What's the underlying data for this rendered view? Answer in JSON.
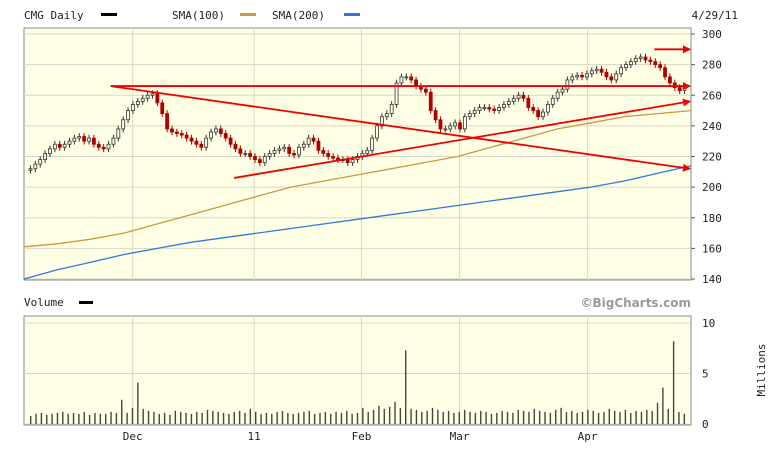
{
  "header": {
    "symbol_label": "CMG Daily",
    "sma100_label": "SMA(100)",
    "sma200_label": "SMA(200)",
    "date": "4/29/11"
  },
  "volume_panel": {
    "label": "Volume",
    "watermark": "©BigCharts.com",
    "unit_label": "Millions"
  },
  "colors": {
    "background": "#ffffe6",
    "grid": "#d8d8c8",
    "price_candles": "#b00000",
    "sma100": "#cc9944",
    "sma200": "#3377dd",
    "trend_arrows": "#ee0000",
    "volume_bars": "#444444"
  },
  "chart_data": [
    {
      "type": "candlestick",
      "title": "CMG Daily",
      "y_ticks": [
        "300",
        "280",
        "260",
        "240",
        "220",
        "200",
        "180",
        "160",
        "140"
      ],
      "ylim": [
        140,
        300
      ],
      "x_labels": [
        "Dec",
        "11",
        "Feb",
        "Mar",
        "Apr"
      ],
      "grid": true,
      "approx_close": [
        212,
        215,
        218,
        222,
        225,
        228,
        226,
        228,
        230,
        232,
        233,
        230,
        232,
        228,
        226,
        225,
        228,
        232,
        238,
        244,
        250,
        254,
        256,
        258,
        260,
        261,
        255,
        248,
        238,
        236,
        235,
        234,
        232,
        230,
        228,
        226,
        232,
        236,
        238,
        235,
        232,
        228,
        225,
        222,
        222,
        220,
        218,
        216,
        220,
        222,
        224,
        225,
        226,
        222,
        221,
        226,
        228,
        232,
        230,
        224,
        222,
        220,
        219,
        218,
        218,
        216,
        218,
        220,
        222,
        224,
        232,
        240,
        246,
        248,
        254,
        268,
        272,
        272,
        270,
        266,
        264,
        262,
        250,
        244,
        238,
        238,
        240,
        242,
        238,
        246,
        248,
        250,
        252,
        252,
        251,
        250,
        252,
        254,
        256,
        258,
        260,
        258,
        252,
        250,
        246,
        249,
        254,
        258,
        262,
        264,
        270,
        272,
        273,
        272,
        274,
        276,
        277,
        275,
        272,
        270,
        274,
        278,
        280,
        282,
        284,
        285,
        283,
        282,
        280,
        278,
        272,
        268,
        265,
        263,
        265
      ],
      "series": [
        {
          "name": "SMA(100)",
          "values": [
            161,
            163,
            166,
            170,
            176,
            182,
            188,
            194,
            200,
            204,
            208,
            212,
            216,
            220,
            226,
            232,
            238,
            242,
            246,
            248,
            250
          ]
        },
        {
          "name": "SMA(200)",
          "values": [
            140,
            146,
            151,
            156,
            160,
            164,
            167,
            170,
            173,
            176,
            179,
            182,
            185,
            188,
            191,
            194,
            197,
            200,
            204,
            209,
            214
          ]
        }
      ],
      "trend_lines": [
        {
          "from": [
            0.13,
            266
          ],
          "to": [
            1.0,
            266
          ]
        },
        {
          "from": [
            0.13,
            266
          ],
          "to": [
            1.0,
            212
          ]
        },
        {
          "from": [
            0.315,
            206
          ],
          "to": [
            1.0,
            256
          ]
        },
        {
          "from": [
            0.945,
            290
          ],
          "to": [
            1.0,
            290
          ]
        }
      ]
    },
    {
      "type": "bar",
      "title": "Volume",
      "ylabel": "Millions",
      "y_ticks": [
        "10",
        "5",
        "0"
      ],
      "ylim": [
        0,
        10
      ],
      "values": [
        0.8,
        1.0,
        1.1,
        0.9,
        1.0,
        1.1,
        1.2,
        1.0,
        1.1,
        1.0,
        1.2,
        0.9,
        1.1,
        1.0,
        1.0,
        1.2,
        1.1,
        2.4,
        1.1,
        1.6,
        4.1,
        1.5,
        1.3,
        1.2,
        1.0,
        1.1,
        0.9,
        1.3,
        1.2,
        1.1,
        1.0,
        1.2,
        1.1,
        1.4,
        1.3,
        1.2,
        1.1,
        1.0,
        1.2,
        1.3,
        1.1,
        1.5,
        1.2,
        1.0,
        1.1,
        1.0,
        1.2,
        1.3,
        1.1,
        1.0,
        1.1,
        1.2,
        1.3,
        1.0,
        1.1,
        1.2,
        1.0,
        1.2,
        1.1,
        1.3,
        1.0,
        1.1,
        1.6,
        1.2,
        1.4,
        1.8,
        1.5,
        1.7,
        2.2,
        1.6,
        7.3,
        1.5,
        1.4,
        1.2,
        1.3,
        1.6,
        1.4,
        1.2,
        1.3,
        1.1,
        1.2,
        1.4,
        1.2,
        1.1,
        1.3,
        1.2,
        1.0,
        1.1,
        1.3,
        1.2,
        1.1,
        1.4,
        1.3,
        1.2,
        1.5,
        1.3,
        1.2,
        1.1,
        1.4,
        1.6,
        1.2,
        1.3,
        1.1,
        1.2,
        1.4,
        1.3,
        1.1,
        1.2,
        1.5,
        1.3,
        1.2,
        1.4,
        1.1,
        1.3,
        1.2,
        1.4,
        1.3,
        2.1,
        3.6,
        1.5,
        8.2,
        1.2,
        1.0
      ]
    }
  ]
}
